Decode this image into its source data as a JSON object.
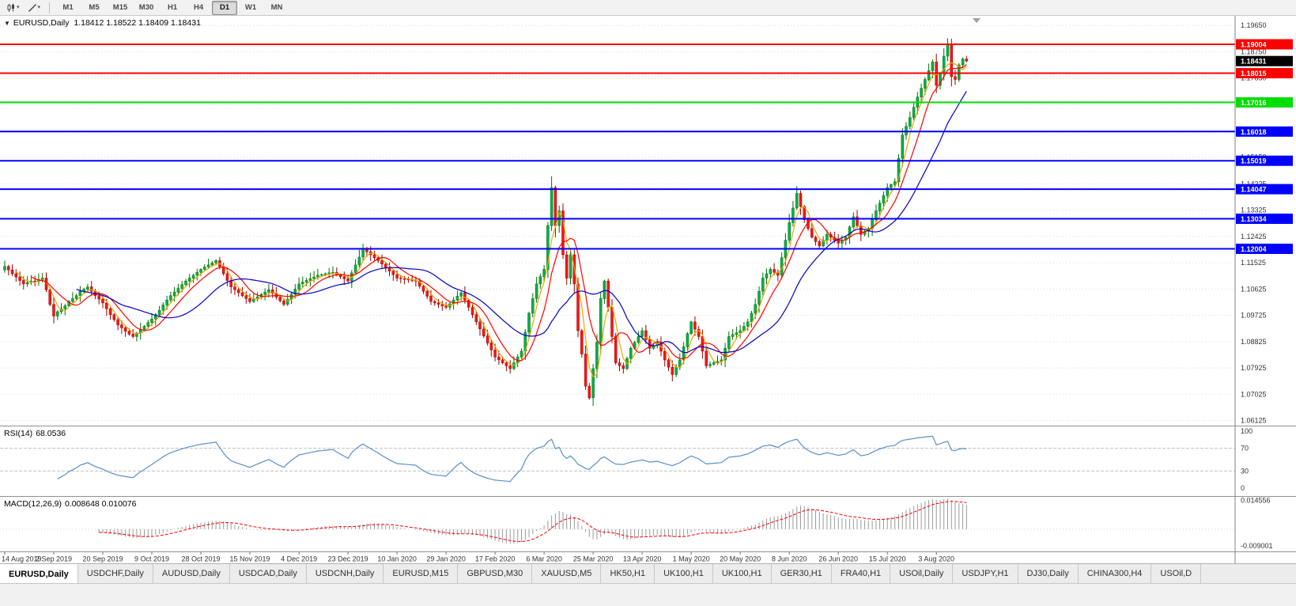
{
  "toolbar": {
    "timeframes": [
      "M1",
      "M5",
      "M15",
      "M30",
      "H1",
      "H4",
      "D1",
      "W1",
      "MN"
    ],
    "active_timeframe": "D1",
    "icons": [
      "candlestick-chart-icon",
      "chevron-down-icon",
      "trendline-icon",
      "chevron-down-icon"
    ]
  },
  "chart": {
    "header": "EURUSD,Daily  1.18412 1.18522 1.18409 1.18431"
  },
  "tabs": {
    "active_index": 0,
    "items": [
      "EURUSD,Daily",
      "USDCHF,Daily",
      "AUDUSD,Daily",
      "USDCAD,Daily",
      "USDCNH,Daily",
      "EURUSD,M15",
      "GBPUSD,M30",
      "XAUUSD,M5",
      "HK50,H1",
      "UK100,H1",
      "UK100,H1",
      "GER30,H1",
      "FRA40,H1",
      "USOil,Daily",
      "USDJPY,H1",
      "DJ30,Daily",
      "CHINA300,H4",
      "USOil,D"
    ]
  },
  "chart_data": {
    "type": "candlestick",
    "symbol": "EURUSD",
    "timeframe": "Daily",
    "ohlc_current": {
      "open": "1.18412",
      "high": "1.18522",
      "low": "1.18409",
      "close": "1.18431"
    },
    "y_range": [
      1.0595,
      1.1998
    ],
    "price_ticks": [
      "1.19650",
      "1.18750",
      "1.17850",
      "1.16950",
      "1.16050",
      "1.15150",
      "1.14225",
      "1.13325",
      "1.12425",
      "1.11525",
      "1.10625",
      "1.09725",
      "1.08825",
      "1.07925",
      "1.07025",
      "1.06125"
    ],
    "x_labels": [
      "14 Aug 2019",
      "2 Sep 2019",
      "20 Sep 2019",
      "9 Oct 2019",
      "28 Oct 2019",
      "15 Nov 2019",
      "4 Dec 2019",
      "23 Dec 2019",
      "10 Jan 2020",
      "29 Jan 2020",
      "17 Feb 2020",
      "6 Mar 2020",
      "25 Mar 2020",
      "13 Apr 2020",
      "1 May 2020",
      "20 May 2020",
      "8 Jun 2020",
      "26 Jun 2020",
      "15 Jul 2020",
      "3 Aug 2020"
    ],
    "x_label_step": 13,
    "closes": [
      1.114,
      1.1128,
      1.1115,
      1.1104,
      1.1092,
      1.108,
      1.1085,
      1.109,
      1.1088,
      1.1095,
      1.11,
      1.106,
      1.101,
      1.097,
      1.0985,
      1.0995,
      1.1005,
      1.102,
      1.103,
      1.104,
      1.1055,
      1.1062,
      1.107,
      1.1055,
      1.104,
      1.1028,
      1.1015,
      1.0995,
      1.0975,
      1.0958,
      1.094,
      1.093,
      1.0918,
      1.0908,
      1.09,
      1.0912,
      1.0925,
      1.0935,
      1.0948,
      1.096,
      1.0975,
      1.099,
      1.1008,
      1.1025,
      1.104,
      1.1052,
      1.1065,
      1.1078,
      1.109,
      1.11,
      1.111,
      1.112,
      1.113,
      1.1138,
      1.1145,
      1.1152,
      1.116,
      1.114,
      1.1115,
      1.1092,
      1.107,
      1.106,
      1.105,
      1.104,
      1.103,
      1.102,
      1.1028,
      1.1036,
      1.1044,
      1.1052,
      1.106,
      1.1048,
      1.1035,
      1.1022,
      1.101,
      1.1028,
      1.1045,
      1.1062,
      1.108,
      1.1086,
      1.1092,
      1.1098,
      1.1104,
      1.111,
      1.1112,
      1.1115,
      1.1118,
      1.112,
      1.1112,
      1.1105,
      1.1098,
      1.109,
      1.1118,
      1.1145,
      1.1172,
      1.12,
      1.119,
      1.118,
      1.117,
      1.116,
      1.1148,
      1.1136,
      1.1124,
      1.1112,
      1.11,
      1.1098,
      1.1096,
      1.1094,
      1.1092,
      1.109,
      1.1072,
      1.1055,
      1.1038,
      1.102,
      1.1015,
      1.101,
      1.1005,
      1.1,
      1.1012,
      1.1025,
      1.1038,
      1.105,
      1.1025,
      1.1,
      1.0975,
      1.095,
      1.0926,
      1.0902,
      1.0878,
      1.0854,
      1.083,
      1.082,
      1.081,
      1.08,
      1.079,
      1.081,
      1.083,
      1.085,
      1.0915,
      1.098,
      1.103,
      1.108,
      1.1105,
      1.113,
      1.128,
      1.141,
      1.128,
      1.133,
      1.118,
      1.11,
      1.118,
      1.108,
      1.092,
      1.084,
      1.073,
      1.069,
      1.079,
      1.088,
      1.103,
      1.109,
      1.1,
      1.09,
      1.081,
      1.08,
      1.079,
      1.0825,
      1.086,
      1.088,
      1.09,
      1.092,
      1.089,
      1.086,
      1.087,
      1.088,
      1.085,
      1.082,
      1.0795,
      1.077,
      1.0795,
      1.082,
      1.0865,
      1.091,
      1.095,
      1.0925,
      1.09,
      1.085,
      1.08,
      1.0805,
      1.081,
      1.0815,
      1.082,
      1.086,
      1.09,
      1.0907,
      1.0913,
      1.092,
      1.0935,
      1.095,
      1.098,
      1.101,
      1.1055,
      1.11,
      1.1115,
      1.113,
      1.112,
      1.111,
      1.117,
      1.123,
      1.129,
      1.134,
      1.139,
      1.1345,
      1.13,
      1.127,
      1.124,
      1.1225,
      1.121,
      1.123,
      1.125,
      1.124,
      1.123,
      1.122,
      1.123,
      1.124,
      1.1275,
      1.131,
      1.128,
      1.125,
      1.126,
      1.127,
      1.13,
      1.133,
      1.1357,
      1.1383,
      1.141,
      1.142,
      1.143,
      1.151,
      1.159,
      1.162,
      1.165,
      1.1685,
      1.172,
      1.175,
      1.178,
      1.181,
      1.184,
      1.176,
      1.18,
      1.186,
      1.19,
      1.179,
      1.178,
      1.183,
      1.185,
      1.18431
    ],
    "levels": [
      {
        "price": 1.19004,
        "label": "1.19004",
        "color": "#FF0000"
      },
      {
        "price": 1.18015,
        "label": "1.18015",
        "color": "#FF0000"
      },
      {
        "price": 1.17016,
        "label": "1.17016",
        "color": "#00DD00"
      },
      {
        "price": 1.16018,
        "label": "1.16018",
        "color": "#0000FF"
      },
      {
        "price": 1.15019,
        "label": "1.15019",
        "color": "#0000FF"
      },
      {
        "price": 1.14047,
        "label": "1.14047",
        "color": "#0000FF"
      },
      {
        "price": 1.13034,
        "label": "1.13034",
        "color": "#0000FF"
      },
      {
        "price": 1.12004,
        "label": "1.12004",
        "color": "#0000FF"
      }
    ],
    "bid_marker": {
      "price": 1.18431,
      "label": "1.18431",
      "color": "#000000"
    },
    "moving_averages": [
      {
        "period": 4,
        "color": "#E6A800"
      },
      {
        "period": 8,
        "color": "#FF0000"
      },
      {
        "period": 20,
        "color": "#0000C8"
      }
    ],
    "rsi": {
      "label": "RSI(14)",
      "period": 14,
      "current": "68.0536",
      "scale": [
        100,
        70,
        30,
        0
      ],
      "range": [
        0,
        100
      ],
      "color": "#5B8FC9",
      "level_lines": [
        70,
        30
      ]
    },
    "macd": {
      "label": "MACD(12,26,9)",
      "fast": 12,
      "slow": 26,
      "signal": 9,
      "current": "0.008648 0.010076",
      "scale_top": "0.014556",
      "scale_bottom": "-0.009001",
      "range": [
        -0.0098,
        0.0152
      ],
      "hist_color": "#9A9A9A",
      "signal_color": "#FF0000"
    },
    "style": {
      "candle_up_fill": "#00B050",
      "candle_up_edge": "#007000",
      "candle_down_fill": "#FF1414",
      "candle_down_edge": "#9C0000",
      "grid": "#D8D8D8",
      "axis_text": "#333333",
      "separator": "#808080"
    }
  }
}
